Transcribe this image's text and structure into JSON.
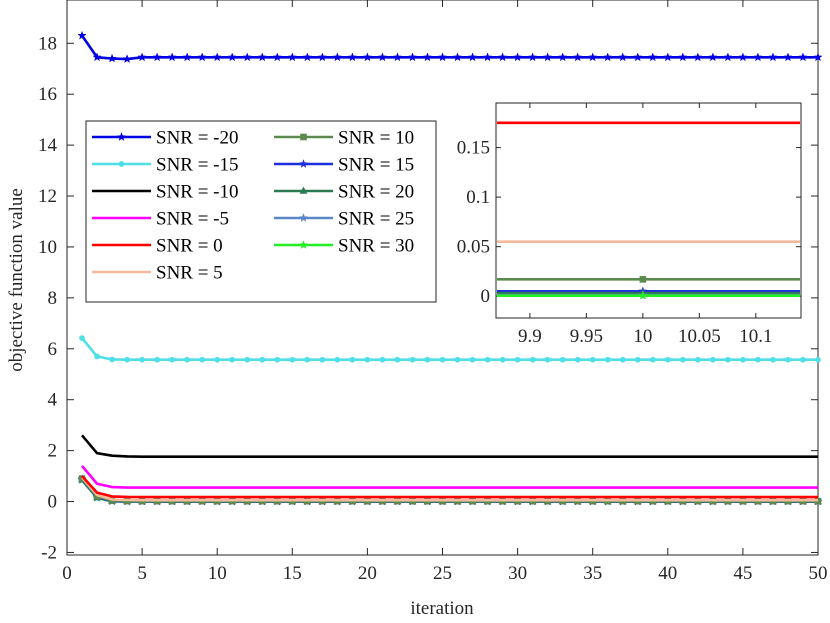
{
  "chart_data": {
    "type": "line",
    "title": "",
    "xlabel": "iteration",
    "ylabel": "objective function value",
    "xlim": [
      0,
      50
    ],
    "ylim": [
      -2.1,
      19.7
    ],
    "xticks": [
      0,
      5,
      10,
      15,
      20,
      25,
      30,
      35,
      40,
      45,
      50
    ],
    "yticks": [
      -2,
      0,
      2,
      4,
      6,
      8,
      10,
      12,
      14,
      16,
      18
    ],
    "x": [
      1,
      2,
      3,
      4,
      5,
      6,
      7,
      8,
      9,
      10,
      11,
      12,
      13,
      14,
      15,
      16,
      17,
      18,
      19,
      20,
      21,
      22,
      23,
      24,
      25,
      26,
      27,
      28,
      29,
      30,
      31,
      32,
      33,
      34,
      35,
      36,
      37,
      38,
      39,
      40,
      41,
      42,
      43,
      44,
      45,
      46,
      47,
      48,
      49,
      50
    ],
    "series": [
      {
        "name": "SNR = -20",
        "color": "#0000e6",
        "marker": "star",
        "start": [
          18.3,
          17.45,
          17.4,
          17.38
        ],
        "final": 17.45
      },
      {
        "name": "SNR = -15",
        "color": "#4fdfe6",
        "marker": "dot",
        "start": [
          6.42,
          5.7,
          5.58,
          5.57
        ],
        "final": 5.57
      },
      {
        "name": "SNR = -10",
        "color": "#000000",
        "marker": "none",
        "start": [
          2.6,
          1.9,
          1.8,
          1.77
        ],
        "final": 1.76
      },
      {
        "name": "SNR = -5",
        "color": "#ff00ff",
        "marker": "none",
        "start": [
          1.4,
          0.7,
          0.57,
          0.55
        ],
        "final": 0.55
      },
      {
        "name": "SNR = 0",
        "color": "#ff0000",
        "marker": "none",
        "start": [
          1.0,
          0.35,
          0.2,
          0.18
        ],
        "final": 0.175
      },
      {
        "name": "SNR = 5",
        "color": "#f4b99b",
        "marker": "none",
        "start": [
          0.95,
          0.25,
          0.08,
          0.06
        ],
        "final": 0.055
      },
      {
        "name": "SNR = 10",
        "color": "#5b8a4e",
        "marker": "square",
        "start": [
          0.9,
          0.2,
          0.04,
          0.02
        ],
        "final": 0.017
      },
      {
        "name": "SNR = 15",
        "color": "#1f2fe0",
        "marker": "star",
        "start": [
          0.88,
          0.18,
          0.02,
          0.008
        ],
        "final": 0.005
      },
      {
        "name": "SNR = 20",
        "color": "#2b7a52",
        "marker": "triangle",
        "start": [
          0.86,
          0.16,
          0.015,
          0.005
        ],
        "final": 0.003
      },
      {
        "name": "SNR = 25",
        "color": "#5b87c7",
        "marker": "star",
        "start": [
          0.85,
          0.15,
          0.01,
          0.003
        ],
        "final": 0.001
      },
      {
        "name": "SNR = 30",
        "color": "#22ee22",
        "marker": "star",
        "start": [
          0.84,
          0.14,
          0.008,
          0.002
        ],
        "final": 0.0005
      }
    ],
    "legend": {
      "position": "upper-left",
      "columns": 2
    },
    "inset": {
      "xlim": [
        9.87,
        10.14
      ],
      "ylim": [
        -0.022,
        0.195
      ],
      "xticks": [
        "9.9",
        "9.95",
        "10",
        "10.05",
        "10.1"
      ],
      "xtick_values": [
        9.9,
        9.95,
        10,
        10.05,
        10.1
      ],
      "yticks": [
        "0",
        "0.05",
        "0.1",
        "0.15"
      ],
      "ytick_values": [
        0,
        0.05,
        0.1,
        0.15
      ]
    }
  }
}
